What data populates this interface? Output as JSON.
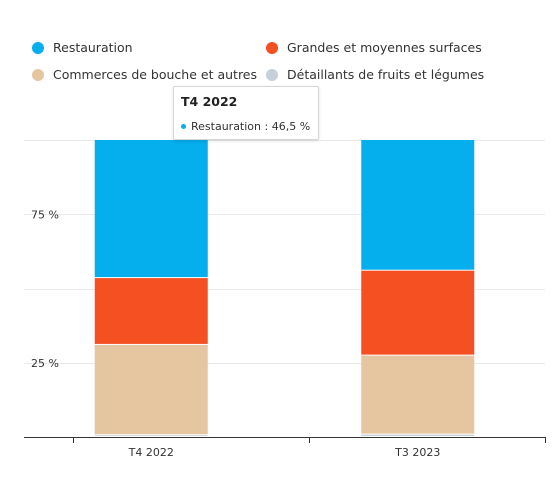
{
  "chart_data": {
    "type": "bar",
    "stacked": true,
    "normalized": true,
    "categories": [
      "T4 2022",
      "T3 2023"
    ],
    "series": [
      {
        "name": "Détaillants de fruits et légumes",
        "color": "#c5d0d8",
        "values": [
          0.6,
          0.8
        ]
      },
      {
        "name": "Commerces de bouche et autres",
        "color": "#e6c6a0",
        "values": [
          30.4,
          26.6
        ]
      },
      {
        "name": "Grandes et moyennes surfaces",
        "color": "#f55022",
        "values": [
          22.5,
          28.6
        ]
      },
      {
        "name": "Restauration",
        "color": "#05aeec",
        "values": [
          46.5,
          44.0
        ]
      }
    ],
    "legend_order": [
      3,
      2,
      1,
      0
    ],
    "yticks": [
      {
        "value": 25,
        "label": "25 %"
      },
      {
        "value": 75,
        "label": "75 %"
      }
    ],
    "gridlines": [
      0,
      25,
      50,
      75,
      100
    ],
    "ylim": [
      0,
      100
    ],
    "tooltip": {
      "title": "T4 2022",
      "series": "Restauration",
      "text": "Restauration : 46,5 %"
    }
  }
}
